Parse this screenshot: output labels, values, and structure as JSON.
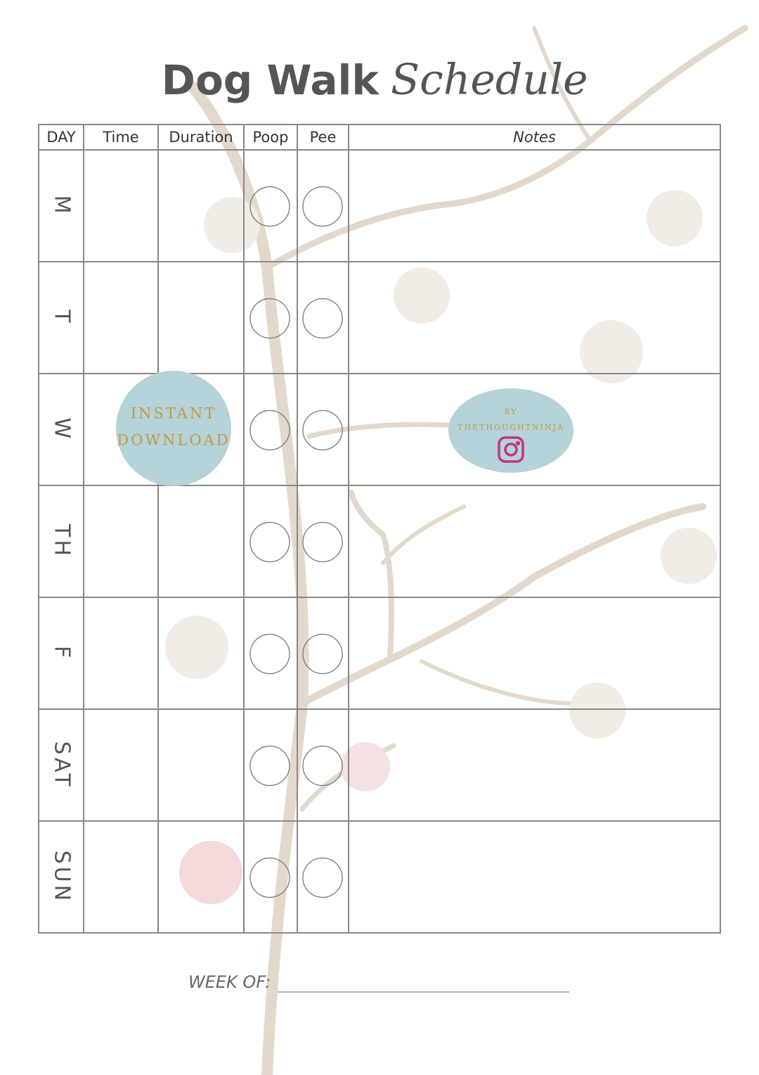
{
  "header": {
    "title_bold": "Dog Walk",
    "title_script": "Schedule"
  },
  "table": {
    "columns": [
      "DAY",
      "Time",
      "Duration",
      "Poop",
      "Pee",
      "Notes"
    ],
    "rows": [
      "M",
      "T",
      "W",
      "TH",
      "F",
      "SAT",
      "SUN"
    ]
  },
  "badges": {
    "left": [
      "INSTANT",
      "DOWNLOAD"
    ],
    "right": [
      "BY",
      "THETHOUGHTNINJA"
    ]
  },
  "footer": {
    "week_label": "WEEK OF:"
  }
}
